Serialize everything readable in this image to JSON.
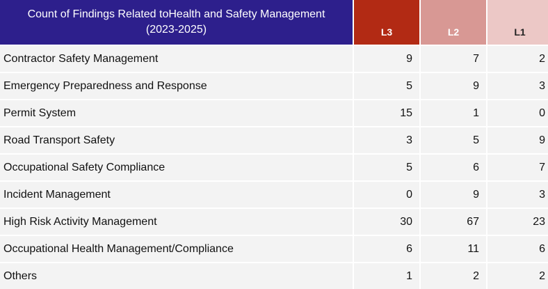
{
  "header": {
    "title_line1": "Count of Findings Related toHealth and Safety Management",
    "title_line2": "(2023-2025)",
    "columns": [
      "L3",
      "L2",
      "L1"
    ]
  },
  "colors": {
    "title_bg": "#2d1f8c",
    "l3_bg": "#b22a14",
    "l2_bg": "#d89894",
    "l1_bg": "#ecc8c6",
    "row_bg": "#f3f3f3"
  },
  "rows": [
    {
      "label": "Contractor Safety Management",
      "l3": "9",
      "l2": "7",
      "l1": "2"
    },
    {
      "label": "Emergency Preparedness and Response",
      "l3": "5",
      "l2": "9",
      "l1": "3"
    },
    {
      "label": "Permit System",
      "l3": "15",
      "l2": "1",
      "l1": "0"
    },
    {
      "label": "Road Transport Safety",
      "l3": "3",
      "l2": "5",
      "l1": "9"
    },
    {
      "label": "Occupational Safety Compliance",
      "l3": "5",
      "l2": "6",
      "l1": "7"
    },
    {
      "label": "Incident Management",
      "l3": "0",
      "l2": "9",
      "l1": "3"
    },
    {
      "label": "High Risk Activity Management",
      "l3": "30",
      "l2": "67",
      "l1": "23"
    },
    {
      "label": "Occupational Health Management/Compliance",
      "l3": "6",
      "l2": "11",
      "l1": "6"
    },
    {
      "label": "Others",
      "l3": "1",
      "l2": "2",
      "l1": "2"
    }
  ]
}
